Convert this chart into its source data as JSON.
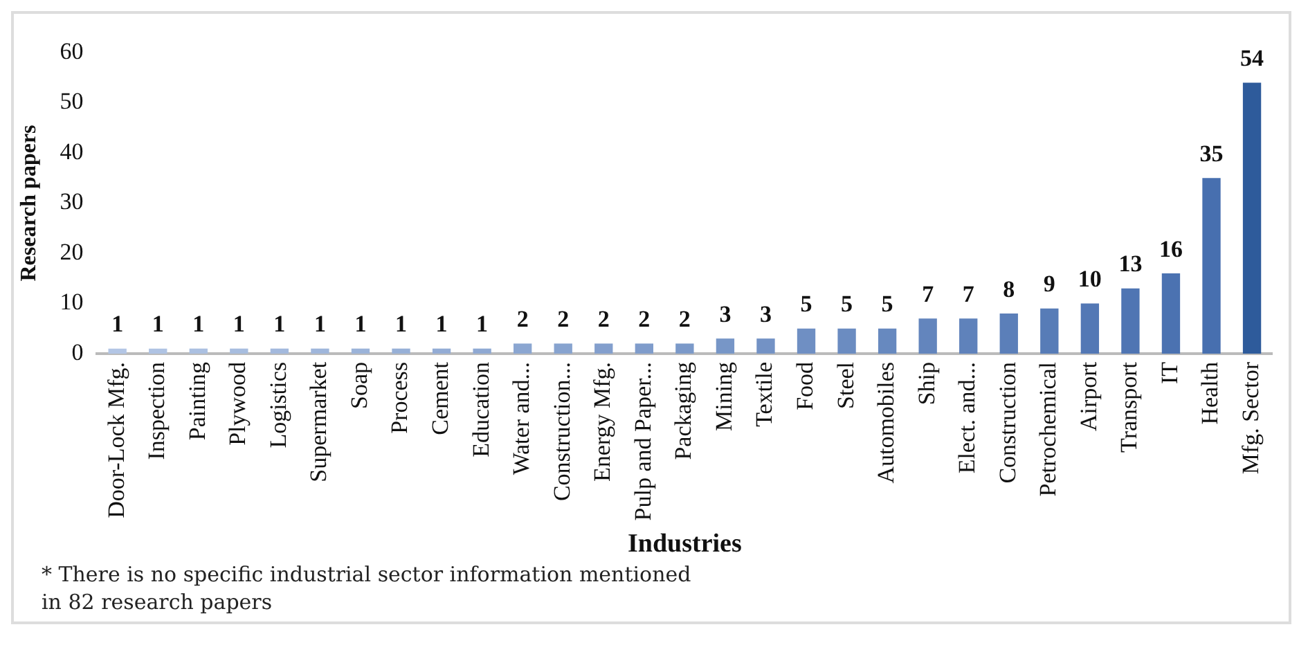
{
  "chart_data": {
    "type": "bar",
    "xlabel": "Industries",
    "ylabel": "Research papers",
    "categories": [
      "Door-Lock Mfg.",
      "Inspection",
      "Painting",
      "Plywood",
      "Logistics",
      "Supermarket",
      "Soap",
      "Process",
      "Cement",
      "Education",
      "Water and...",
      "Construction...",
      "Energy Mfg.",
      "Pulp and Paper...",
      "Packaging",
      "Mining",
      "Textile",
      "Food",
      "Steel",
      "Automobiles",
      "Ship",
      "Elect. and...",
      "Construction",
      "Petrochemical",
      "Airport",
      "Transport",
      "IT",
      "Health",
      "Mfg. Sector"
    ],
    "values": [
      1,
      1,
      1,
      1,
      1,
      1,
      1,
      1,
      1,
      1,
      2,
      2,
      2,
      2,
      2,
      3,
      3,
      5,
      5,
      5,
      7,
      7,
      8,
      9,
      10,
      13,
      16,
      35,
      54
    ],
    "colors": [
      "#b3c6e5",
      "#afc3e3",
      "#abc0e1",
      "#a7bddf",
      "#a3b9dd",
      "#9fb6db",
      "#9bb3d9",
      "#97b0d7",
      "#93acd5",
      "#8fa9d3",
      "#8ba6d1",
      "#87a3cf",
      "#839fcd",
      "#7f9ccb",
      "#7b99c9",
      "#7796c7",
      "#7392c5",
      "#6f8fc3",
      "#6b8cc1",
      "#6789bf",
      "#6385bd",
      "#5f82bb",
      "#5b7fb9",
      "#577cb7",
      "#5378b5",
      "#4f75b3",
      "#4b72b1",
      "#476faf",
      "#2e5b9b"
    ],
    "ylim": [
      0,
      60
    ],
    "yticks": [
      0,
      10,
      20,
      30,
      40,
      50,
      60
    ],
    "grid": false,
    "legend": false,
    "data_labels": true,
    "annotations": [
      "* There is no specific industrial sector information mentioned in 82 research papers"
    ]
  }
}
